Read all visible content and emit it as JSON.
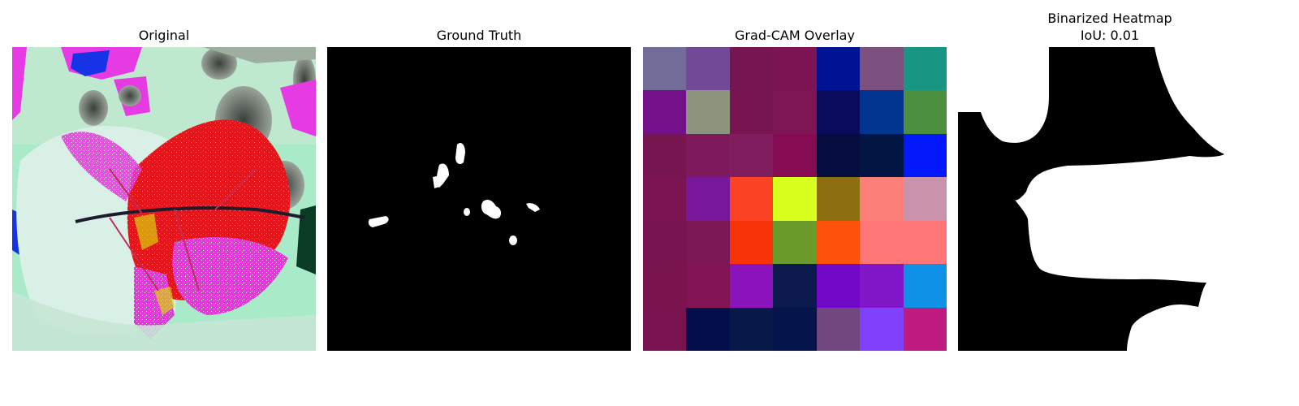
{
  "panels": {
    "original": {
      "title": "Original"
    },
    "ground_truth": {
      "title": "Ground Truth"
    },
    "gradcam": {
      "title": "Grad-CAM Overlay",
      "grid_colors": [
        [
          "#736c98",
          "#714a97",
          "#751651",
          "#7c1454",
          "#001493",
          "#7c507f",
          "#179683"
        ],
        [
          "#74108a",
          "#8d947e",
          "#771551",
          "#7e1655",
          "#080c5b",
          "#02358f",
          "#4c903f"
        ],
        [
          "#771551",
          "#7e1a5b",
          "#801d5e",
          "#850c52",
          "#050c3f",
          "#031643",
          "#0318fb"
        ],
        [
          "#7a1551",
          "#771799",
          "#fd4326",
          "#d8ff1e",
          "#8d6e11",
          "#fc7f79",
          "#c893ab"
        ],
        [
          "#781450",
          "#7c1855",
          "#f93309",
          "#6a9a2a",
          "#fd520b",
          "#fd7779",
          "#fe7776"
        ],
        [
          "#79144f",
          "#811455",
          "#8c14bc",
          "#0b194c",
          "#7208c8",
          "#8217c9",
          "#0d90e6"
        ],
        [
          "#79134f",
          "#040e4c",
          "#081848",
          "#06144c",
          "#714780",
          "#8041fc",
          "#bf1a7d"
        ]
      ]
    },
    "binarized": {
      "title": "Binarized Heatmap",
      "subtitle": "IoU: 0.01"
    }
  },
  "colors": {
    "mask_fg": "#ffffff",
    "mask_bg": "#000000"
  }
}
